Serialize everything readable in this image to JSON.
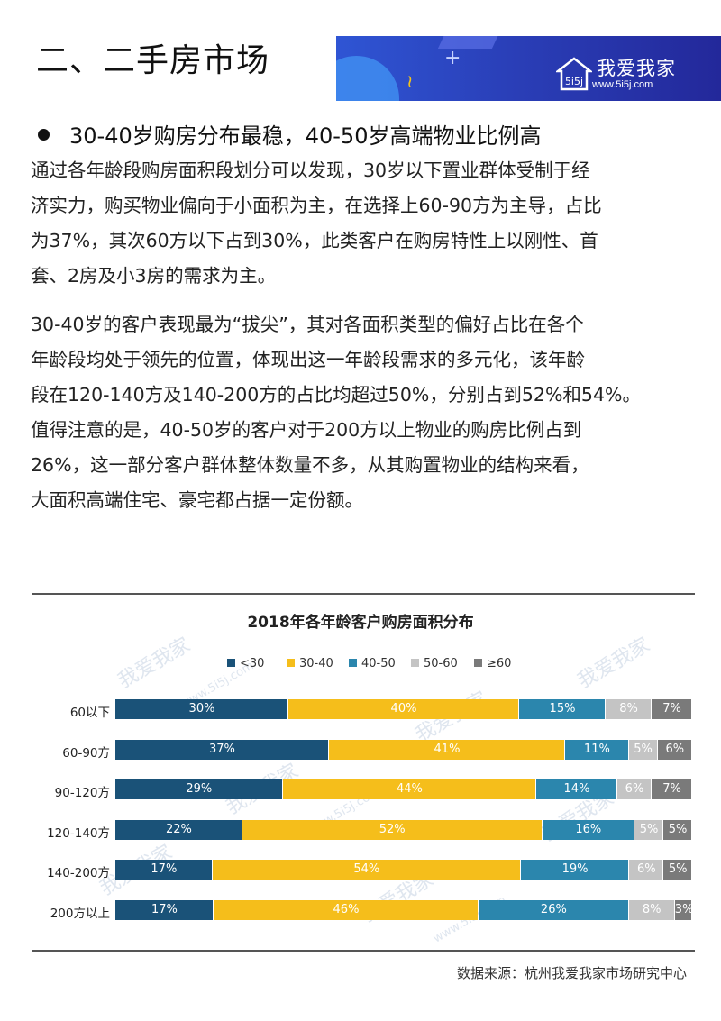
{
  "heading": "二、二手房市场",
  "banner": {
    "brand_name": "我爱我家",
    "brand_url": "www.5i5j.com",
    "logo_glyph": "5i5j"
  },
  "bullet": "30-40岁购房分布最稳，40-50岁高端物业比例高",
  "paragraph1": [
    "通过各年龄段购房面积段划分可以发现，30岁以下置业群体受制于经",
    "济实力，购买物业偏向于小面积为主，在选择上60-90方为主导，占比",
    "为37%，其次60方以下占到30%，此类客户在购房特性上以刚性、首",
    "套、2房及小3房的需求为主。"
  ],
  "paragraph2": [
    "30-40岁的客户表现最为“拔尖”，其对各面积类型的偏好占比在各个",
    "年龄段均处于领先的位置，体现出这一年龄段需求的多元化，该年龄",
    "段在120-140方及140-200方的占比均超过50%，分别占到52%和54%。",
    "值得注意的是，40-50岁的客户对于200方以上物业的购房比例占到",
    "26%，这一部分客户群体整体数量不多，从其购置物业的结构来看，",
    "大面积高端住宅、豪宅都占据一定份额。"
  ],
  "watermark": {
    "brand": "我爱我家",
    "url": "www.5i5j.com"
  },
  "chart_data": {
    "type": "bar",
    "orientation": "horizontal",
    "stacked": true,
    "title": "2018年各年龄客户购房面积分布",
    "categories": [
      "60以下",
      "60-90方",
      "90-120方",
      "120-140方",
      "140-200方",
      "200方以上"
    ],
    "series": [
      {
        "name": "<30",
        "color": "#1a5278",
        "text_color": "#ffffff",
        "values": [
          30,
          37,
          29,
          22,
          17,
          17
        ]
      },
      {
        "name": "30-40",
        "color": "#f5be1b",
        "text_color": "#ffffff",
        "values": [
          40,
          41,
          44,
          52,
          54,
          46
        ]
      },
      {
        "name": "40-50",
        "color": "#2b86ad",
        "text_color": "#ffffff",
        "values": [
          15,
          11,
          14,
          16,
          19,
          26
        ]
      },
      {
        "name": "50-60",
        "color": "#c4c4c4",
        "text_color": "#ffffff",
        "values": [
          8,
          5,
          6,
          5,
          6,
          8
        ]
      },
      {
        "name": "≥60",
        "color": "#7a7a7a",
        "text_color": "#ffffff",
        "values": [
          7,
          6,
          7,
          5,
          5,
          3
        ]
      }
    ],
    "value_suffix": "%",
    "legend_position": "top",
    "grid": false
  },
  "source": "数据来源：杭州我爱我家市场研究中心"
}
